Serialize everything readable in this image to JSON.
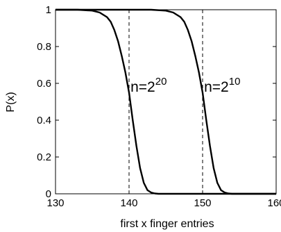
{
  "chart_data": {
    "type": "line",
    "title": "",
    "xlabel": "first x finger entries",
    "ylabel": "P(x)",
    "xlim": [
      130,
      160
    ],
    "ylim": [
      0,
      1
    ],
    "xticks": [
      130,
      140,
      150,
      160
    ],
    "yticks": [
      0,
      0.2,
      0.4,
      0.6,
      0.8,
      1
    ],
    "xtick_labels": [
      "130",
      "140",
      "150",
      "160"
    ],
    "ytick_labels": [
      "0",
      "0.2",
      "0.4",
      "0.6",
      "0.8",
      "1"
    ],
    "grid": false,
    "legend": "none",
    "series": [
      {
        "x": [
          130,
          133,
          135,
          136,
          137,
          137.5,
          138,
          138.5,
          139,
          139.5,
          140,
          140.5,
          141,
          141.5,
          142,
          142.5,
          143,
          143.5,
          144,
          145,
          160
        ],
        "y": [
          1.0,
          1.0,
          0.995,
          0.985,
          0.96,
          0.935,
          0.89,
          0.83,
          0.75,
          0.66,
          0.55,
          0.4,
          0.26,
          0.14,
          0.06,
          0.02,
          0.007,
          0.002,
          0.0,
          0.0,
          0.0
        ]
      },
      {
        "x": [
          130,
          143,
          145,
          146,
          147,
          147.5,
          148,
          148.5,
          149,
          149.5,
          150,
          150.5,
          151,
          151.5,
          152,
          152.5,
          153,
          153.5,
          154,
          155,
          160
        ],
        "y": [
          1.0,
          1.0,
          0.995,
          0.985,
          0.96,
          0.935,
          0.89,
          0.83,
          0.75,
          0.66,
          0.55,
          0.4,
          0.26,
          0.14,
          0.06,
          0.02,
          0.007,
          0.002,
          0.0,
          0.0,
          0.0
        ]
      }
    ],
    "reference_lines": [
      {
        "x": 140,
        "style": "dashed"
      },
      {
        "x": 150,
        "style": "dashed"
      }
    ],
    "annotations": [
      {
        "base": "n=2",
        "exponent": "20",
        "x": 140.2,
        "y": 0.6
      },
      {
        "base": "n=2",
        "exponent": "10",
        "x": 150.2,
        "y": 0.6
      }
    ]
  }
}
